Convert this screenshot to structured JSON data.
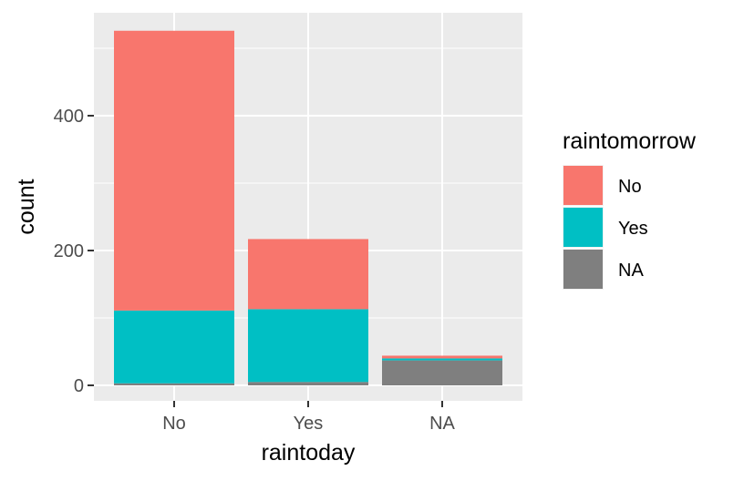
{
  "chart_data": {
    "type": "bar",
    "stacked": true,
    "title": "",
    "xlabel": "raintoday",
    "ylabel": "count",
    "categories": [
      "No",
      "Yes",
      "NA"
    ],
    "ylim": [
      0,
      550
    ],
    "y_ticks": [
      0,
      200,
      400
    ],
    "grid": true,
    "legend_title": "raintomorrow",
    "legend_position": "right",
    "series": [
      {
        "name": "NA",
        "color": "#7f7f7f",
        "values": [
          3,
          5,
          37
        ]
      },
      {
        "name": "Yes",
        "color": "#00bfc4",
        "values": [
          108,
          108,
          3
        ]
      },
      {
        "name": "No",
        "color": "#f8766d",
        "values": [
          415,
          104,
          4
        ]
      }
    ],
    "legend_entries": [
      {
        "label": "No",
        "color": "#f8766d"
      },
      {
        "label": "Yes",
        "color": "#00bfc4"
      },
      {
        "label": "NA",
        "color": "#7f7f7f"
      }
    ]
  }
}
